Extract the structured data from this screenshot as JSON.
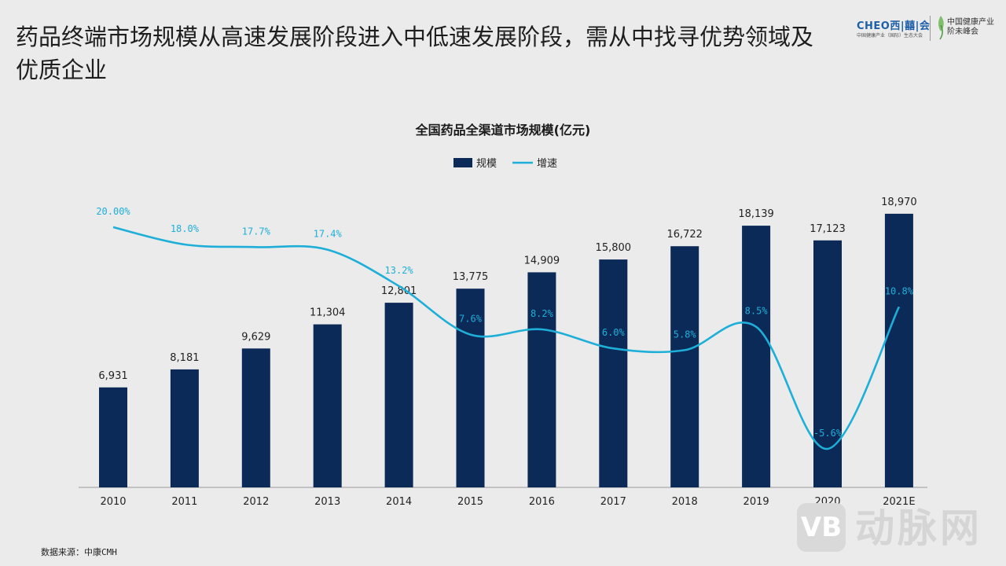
{
  "slide": {
    "title": "药品终端市场规模从高速发展阶段进入中低速发展阶段，需从中找寻优势领域及优质企业",
    "source": "数据来源：中康CMH"
  },
  "logo": {
    "main_a": "CHEO",
    "main_b": "西|囍|会",
    "sub": "中国健康产业（国际）生态大会",
    "right_line1": "中国健康产业",
    "right_line2": "阶未峰会"
  },
  "watermark": {
    "badge": "VB",
    "text": "动脉网"
  },
  "colors": {
    "bar": "#0c2a57",
    "line": "#1eafd8",
    "axis": "#9a9a9a",
    "background": "#ebebeb"
  },
  "chart_data": {
    "type": "bar",
    "title": "全国药品全渠道市场规模(亿元)",
    "categories": [
      "2010",
      "2011",
      "2012",
      "2013",
      "2014",
      "2015",
      "2016",
      "2017",
      "2018",
      "2019",
      "2020",
      "2021E"
    ],
    "series": [
      {
        "name": "规模",
        "type": "bar",
        "axis": "left",
        "values": [
          6931,
          8181,
          9629,
          11304,
          12801,
          13775,
          14909,
          15800,
          16722,
          18139,
          17123,
          18970
        ],
        "labels": [
          "6,931",
          "8,181",
          "9,629",
          "11,304",
          "12,801",
          "13,775",
          "14,909",
          "15,800",
          "16,722",
          "18,139",
          "17,123",
          "18,970"
        ]
      },
      {
        "name": "增速",
        "type": "line",
        "axis": "right",
        "smooth": true,
        "values": [
          20.0,
          18.0,
          17.7,
          17.4,
          13.2,
          7.6,
          8.2,
          6.0,
          5.8,
          8.5,
          -5.6,
          10.8
        ],
        "labels": [
          "20.00%",
          "18.0%",
          "17.7%",
          "17.4%",
          "13.2%",
          "7.6%",
          "8.2%",
          "6.0%",
          "5.8%",
          "8.5%",
          "-5.6%",
          "10.8%"
        ]
      }
    ],
    "ylim_left": [
      0,
      20000
    ],
    "ylim_right": [
      -8,
      30
    ],
    "legend_position": "top-center",
    "grid": false
  }
}
